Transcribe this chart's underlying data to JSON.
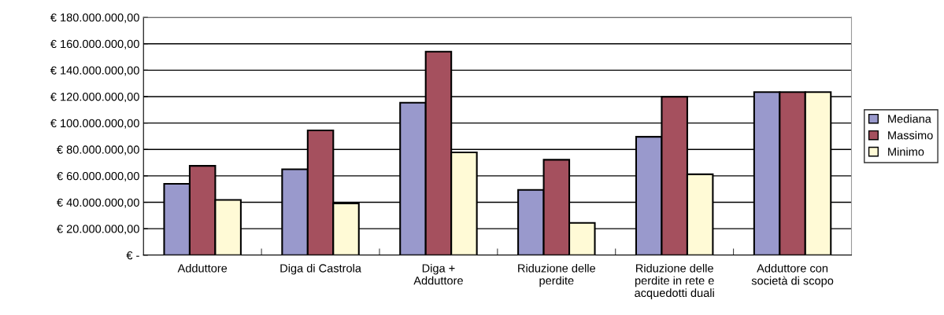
{
  "chart_data": {
    "type": "bar",
    "categories": [
      "Adduttore",
      "Diga di Castrola",
      "Diga +\nAdduttore",
      "Riduzione delle\nperdite",
      "Riduzione delle\nperdite in rete e\nacquedotti duali",
      "Adduttore con\nsocietà di scopo"
    ],
    "series": [
      {
        "name": "Mediana",
        "color": "#9999cc",
        "values": [
          54000000,
          65000000,
          115400000,
          49400000,
          89600000,
          123400000
        ]
      },
      {
        "name": "Massimo",
        "color": "#a5505e",
        "values": [
          67600000,
          94400000,
          154000000,
          72200000,
          119800000,
          123400000
        ]
      },
      {
        "name": "Minimo",
        "color": "#fffad6",
        "values": [
          41800000,
          39200000,
          77800000,
          24400000,
          61200000,
          123400000
        ]
      }
    ],
    "ylim": [
      0,
      180000000
    ],
    "yticks": [
      {
        "value": 0,
        "label": "€ -"
      },
      {
        "value": 20000000,
        "label": "€ 20.000.000,00"
      },
      {
        "value": 40000000,
        "label": "€ 40.000.000,00"
      },
      {
        "value": 60000000,
        "label": "€ 60.000.000,00"
      },
      {
        "value": 80000000,
        "label": "€ 80.000.000,00"
      },
      {
        "value": 100000000,
        "label": "€ 100.000.000,00"
      },
      {
        "value": 120000000,
        "label": "€ 120.000.000,00"
      },
      {
        "value": 140000000,
        "label": "€ 140.000.000,00"
      },
      {
        "value": 160000000,
        "label": "€ 160.000.000,00"
      },
      {
        "value": 180000000,
        "label": "€ 180.000.000,00"
      }
    ],
    "grid": "y",
    "legend": "right"
  }
}
